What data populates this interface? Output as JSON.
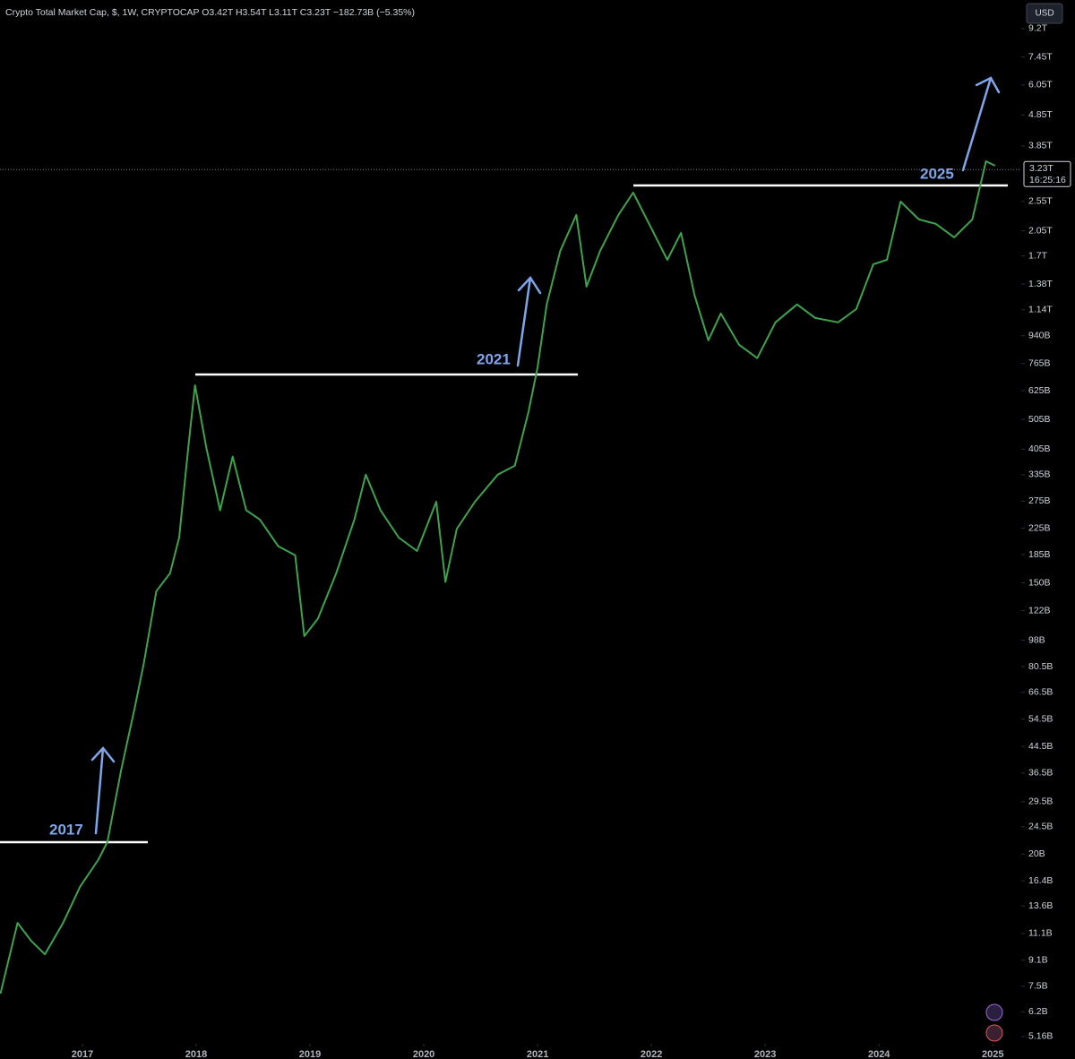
{
  "chart_data": {
    "type": "line",
    "title": "Crypto Total Market Cap, $, 1W, CRYPTOCAP  O3.42T  H3.54T  L3.11T  C3.23T  −182.73B (−5.35%)",
    "currency": "USD",
    "log_scale": true,
    "grid": false,
    "last_price": {
      "value": 3230000000000,
      "label": "3.23T"
    },
    "countdown": "16:25:16",
    "annotations": [
      "2017",
      "2021",
      "2025"
    ],
    "xlim": [
      2016.276,
      2025.25
    ],
    "xticks": [
      2017,
      2018,
      2019,
      2020,
      2021,
      2022,
      2023,
      2024,
      2025
    ],
    "ylim": [
      4890000000,
      11380000000000
    ],
    "yticks": [
      {
        "value": 9200000000000,
        "label": "9.2T"
      },
      {
        "value": 7450000000000,
        "label": "7.45T"
      },
      {
        "value": 6050000000000,
        "label": "6.05T"
      },
      {
        "value": 4850000000000,
        "label": "4.85T"
      },
      {
        "value": 3850000000000,
        "label": "3.85T"
      },
      {
        "value": 2550000000000,
        "label": "2.55T"
      },
      {
        "value": 2050000000000,
        "label": "2.05T"
      },
      {
        "value": 1700000000000,
        "label": "1.7T"
      },
      {
        "value": 1380000000000,
        "label": "1.38T"
      },
      {
        "value": 1140000000000,
        "label": "1.14T"
      },
      {
        "value": 940000000000,
        "label": "940B"
      },
      {
        "value": 765000000000,
        "label": "765B"
      },
      {
        "value": 625000000000,
        "label": "625B"
      },
      {
        "value": 505000000000,
        "label": "505B"
      },
      {
        "value": 405000000000,
        "label": "405B"
      },
      {
        "value": 335000000000,
        "label": "335B"
      },
      {
        "value": 275000000000,
        "label": "275B"
      },
      {
        "value": 225000000000,
        "label": "225B"
      },
      {
        "value": 185000000000,
        "label": "185B"
      },
      {
        "value": 150000000000,
        "label": "150B"
      },
      {
        "value": 122000000000,
        "label": "122B"
      },
      {
        "value": 98000000000,
        "label": "98B"
      },
      {
        "value": 80500000000,
        "label": "80.5B"
      },
      {
        "value": 66500000000,
        "label": "66.5B"
      },
      {
        "value": 54500000000,
        "label": "54.5B"
      },
      {
        "value": 44500000000,
        "label": "44.5B"
      },
      {
        "value": 36500000000,
        "label": "36.5B"
      },
      {
        "value": 29500000000,
        "label": "29.5B"
      },
      {
        "value": 24500000000,
        "label": "24.5B"
      },
      {
        "value": 20000000000,
        "label": "20B"
      },
      {
        "value": 16400000000,
        "label": "16.4B"
      },
      {
        "value": 13600000000,
        "label": "13.6B"
      },
      {
        "value": 11100000000,
        "label": "11.1B"
      },
      {
        "value": 9100000000,
        "label": "9.1B"
      },
      {
        "value": 7500000000,
        "label": "7.5B"
      },
      {
        "value": 6200000000,
        "label": "6.2B"
      },
      {
        "value": 5160000000,
        "label": "5.16B"
      }
    ],
    "color": "#3fa34d",
    "x": [
      2016.28,
      2016.43,
      2016.55,
      2016.67,
      2016.83,
      2016.98,
      2017.14,
      2017.22,
      2017.34,
      2017.46,
      2017.54,
      2017.65,
      2017.77,
      2017.85,
      2017.93,
      2017.99,
      2018.09,
      2018.21,
      2018.32,
      2018.44,
      2018.56,
      2018.72,
      2018.87,
      2018.95,
      2019.07,
      2019.23,
      2019.39,
      2019.49,
      2019.62,
      2019.78,
      2019.94,
      2020.11,
      2020.19,
      2020.29,
      2020.45,
      2020.65,
      2020.8,
      2020.92,
      2021.0,
      2021.08,
      2021.2,
      2021.34,
      2021.43,
      2021.55,
      2021.71,
      2021.84,
      2021.98,
      2022.14,
      2022.26,
      2022.38,
      2022.5,
      2022.61,
      2022.77,
      2022.93,
      2023.09,
      2023.28,
      2023.44,
      2023.64,
      2023.8,
      2023.95,
      2024.07,
      2024.19,
      2024.35,
      2024.5,
      2024.66,
      2024.82,
      2024.94,
      2025.02
    ],
    "values": [
      7100000000,
      12000000000,
      10500000000,
      9500000000,
      12000000000,
      15700000000,
      19200000000,
      21900000000,
      37300000000,
      59300000000,
      82700000000,
      141000000000,
      161000000000,
      210000000000,
      408000000000,
      651000000000,
      408000000000,
      257000000000,
      383000000000,
      257000000000,
      240000000000,
      197000000000,
      184000000000,
      101000000000,
      115000000000,
      161000000000,
      240000000000,
      335000000000,
      257000000000,
      210000000000,
      190000000000,
      274000000000,
      151000000000,
      224000000000,
      274000000000,
      335000000000,
      358000000000,
      533000000000,
      744000000000,
      1186000000000,
      1768000000000,
      2306000000000,
      1354000000000,
      1768000000000,
      2306000000000,
      2722000000000,
      2158000000000,
      1652000000000,
      2019000000000,
      1267000000000,
      909000000000,
      1109000000000,
      879000000000,
      796000000000,
      1038000000000,
      1186000000000,
      1073000000000,
      1038000000000,
      1146000000000,
      1599000000000,
      1652000000000,
      2547000000000,
      2231000000000,
      2158000000000,
      1952000000000,
      2231000000000,
      3436000000000,
      3324000000000
    ]
  }
}
